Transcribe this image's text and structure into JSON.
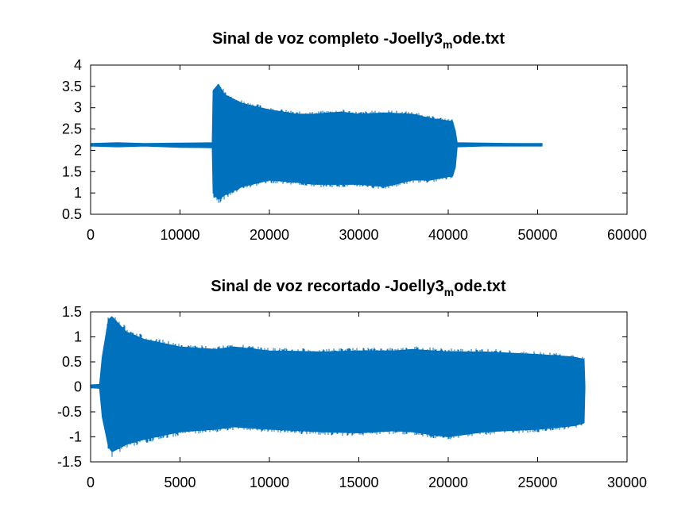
{
  "chart_data": [
    {
      "type": "line",
      "title": "Sinal de voz completo -Joelly3",
      "title_subscript": "m",
      "title_suffix": "ode.txt",
      "xlabel": "",
      "ylabel": "",
      "xlim": [
        0,
        60000
      ],
      "ylim": [
        0.5,
        4
      ],
      "xticks": [
        0,
        10000,
        20000,
        30000,
        40000,
        50000,
        60000
      ],
      "yticks": [
        0.5,
        1,
        1.5,
        2,
        2.5,
        3,
        3.5,
        4
      ],
      "xtick_labels": [
        "0",
        "10000",
        "20000",
        "30000",
        "40000",
        "50000",
        "60000"
      ],
      "ytick_labels": [
        "0.5",
        "1",
        "1.5",
        "2",
        "2.5",
        "3",
        "3.5",
        "4"
      ],
      "grid": false,
      "series_color": "#0072bd",
      "envelope": {
        "x": [
          0,
          3000,
          6000,
          10000,
          13600,
          13700,
          14300,
          15000,
          17000,
          20000,
          23000,
          25000,
          28000,
          30000,
          33000,
          36000,
          38000,
          40500,
          40800,
          41000,
          44000,
          48000,
          50500
        ],
        "upper": [
          2.16,
          2.18,
          2.16,
          2.17,
          2.18,
          3.4,
          3.55,
          3.3,
          3.1,
          2.95,
          2.85,
          2.85,
          2.9,
          2.85,
          2.88,
          2.85,
          2.75,
          2.68,
          2.45,
          2.18,
          2.17,
          2.16,
          2.16
        ],
        "lower": [
          2.1,
          2.08,
          2.1,
          2.07,
          2.06,
          1.0,
          0.85,
          0.95,
          1.15,
          1.3,
          1.25,
          1.2,
          1.2,
          1.2,
          1.15,
          1.3,
          1.3,
          1.4,
          1.6,
          2.08,
          2.1,
          2.1,
          2.1
        ]
      }
    },
    {
      "type": "line",
      "title": "Sinal de voz recortado -Joelly3",
      "title_subscript": "m",
      "title_suffix": "ode.txt",
      "xlabel": "",
      "ylabel": "",
      "xlim": [
        0,
        30000
      ],
      "ylim": [
        -1.5,
        1.5
      ],
      "xticks": [
        0,
        5000,
        10000,
        15000,
        20000,
        25000,
        30000
      ],
      "yticks": [
        -1.5,
        -1,
        -0.5,
        0,
        0.5,
        1,
        1.5
      ],
      "xtick_labels": [
        "0",
        "5000",
        "10000",
        "15000",
        "20000",
        "25000",
        "30000"
      ],
      "ytick_labels": [
        "-1.5",
        "-1",
        "-0.5",
        "0",
        "0.5",
        "1",
        "1.5"
      ],
      "grid": false,
      "series_color": "#0072bd",
      "envelope": {
        "x": [
          0,
          500,
          650,
          1000,
          1200,
          2000,
          3000,
          5000,
          7000,
          8000,
          10000,
          13000,
          15000,
          17000,
          18000,
          20000,
          22000,
          25000,
          27000,
          27600,
          27650
        ],
        "upper": [
          0.04,
          0.05,
          0.6,
          1.35,
          1.4,
          1.1,
          0.95,
          0.8,
          0.75,
          0.8,
          0.72,
          0.7,
          0.72,
          0.72,
          0.75,
          0.7,
          0.7,
          0.65,
          0.6,
          0.55,
          0.0
        ],
        "lower": [
          -0.02,
          -0.03,
          -0.6,
          -1.2,
          -1.3,
          -1.15,
          -1.05,
          -0.9,
          -0.85,
          -0.8,
          -0.85,
          -0.9,
          -0.92,
          -0.88,
          -0.9,
          -1.0,
          -0.9,
          -0.85,
          -0.78,
          -0.72,
          0.0
        ]
      }
    }
  ]
}
